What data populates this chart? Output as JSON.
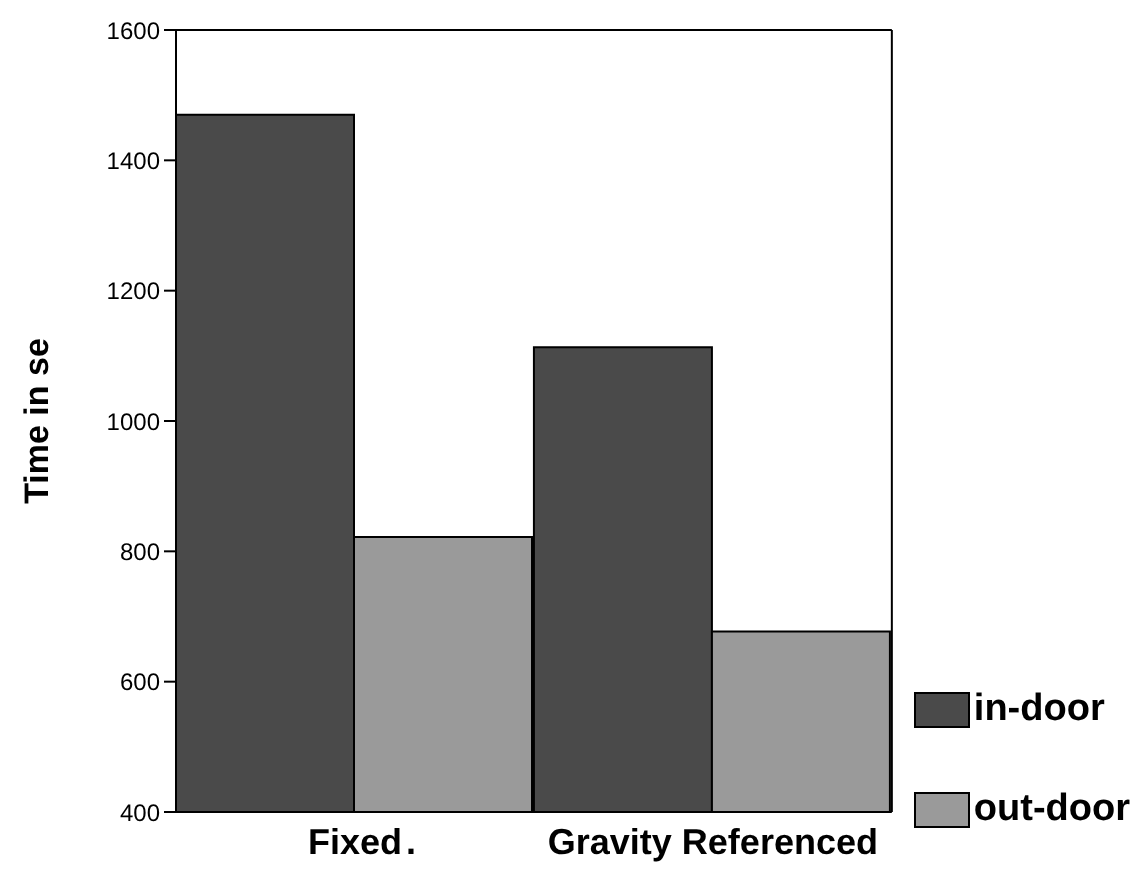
{
  "chart_data": {
    "type": "bar",
    "ylabel": "Time in se",
    "categories": [
      "Fixed",
      "Gravity Referenced"
    ],
    "series": [
      {
        "name": "in-door",
        "color": "#4a4a4a",
        "values": [
          1470,
          1113
        ]
      },
      {
        "name": "out-door",
        "color": "#9a9a9a",
        "values": [
          822,
          677
        ]
      }
    ],
    "ylim": [
      400,
      1600
    ],
    "yticks": [
      400,
      600,
      800,
      1000,
      1200,
      1400,
      1600
    ],
    "legend": "bottom right",
    "annotations": [
      "."
    ]
  }
}
